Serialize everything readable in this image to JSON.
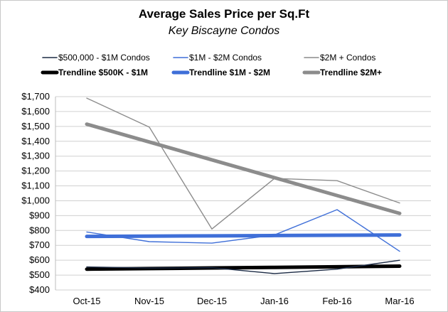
{
  "chart_data": {
    "type": "line",
    "title": "Average Sales Price per Sq.Ft",
    "subtitle": "Key Biscayne Condos",
    "xlabel": "",
    "ylabel": "",
    "categories": [
      "Oct-15",
      "Nov-15",
      "Dec-15",
      "Jan-16",
      "Feb-16",
      "Mar-16"
    ],
    "ylim": [
      400,
      1700
    ],
    "yticks": [
      "$400",
      "$500",
      "$600",
      "$700",
      "$800",
      "$900",
      "$1,000",
      "$1,100",
      "$1,200",
      "$1,300",
      "$1,400",
      "$1,500",
      "$1,600",
      "$1,700"
    ],
    "ytick_values": [
      400,
      500,
      600,
      700,
      800,
      900,
      1000,
      1100,
      1200,
      1300,
      1400,
      1500,
      1600,
      1700
    ],
    "grid": true,
    "legend_position": "top",
    "series": [
      {
        "name": "$500,000 - $1M Condos",
        "values": [
          555,
          548,
          550,
          510,
          540,
          600
        ],
        "color": "#1b2a44",
        "kind": "data"
      },
      {
        "name": "$1M - $2M Condos",
        "values": [
          790,
          725,
          715,
          770,
          940,
          660
        ],
        "color": "#3f6fd8",
        "kind": "data"
      },
      {
        "name": "$2M + Condos",
        "values": [
          1690,
          1495,
          810,
          1150,
          1135,
          985
        ],
        "color": "#8c8c8c",
        "kind": "data"
      },
      {
        "name": "Trendline $500K - $1M",
        "values": [
          540,
          544,
          548,
          552,
          556,
          560
        ],
        "color": "#000000",
        "kind": "trend"
      },
      {
        "name": "Trendline $1M - $2M",
        "values": [
          760,
          762,
          764,
          766,
          768,
          770
        ],
        "color": "#3f6fd8",
        "kind": "trend"
      },
      {
        "name": "Trendline $2M+",
        "values": [
          1515,
          1395,
          1275,
          1155,
          1035,
          915
        ],
        "color": "#8c8c8c",
        "kind": "trend"
      }
    ]
  }
}
